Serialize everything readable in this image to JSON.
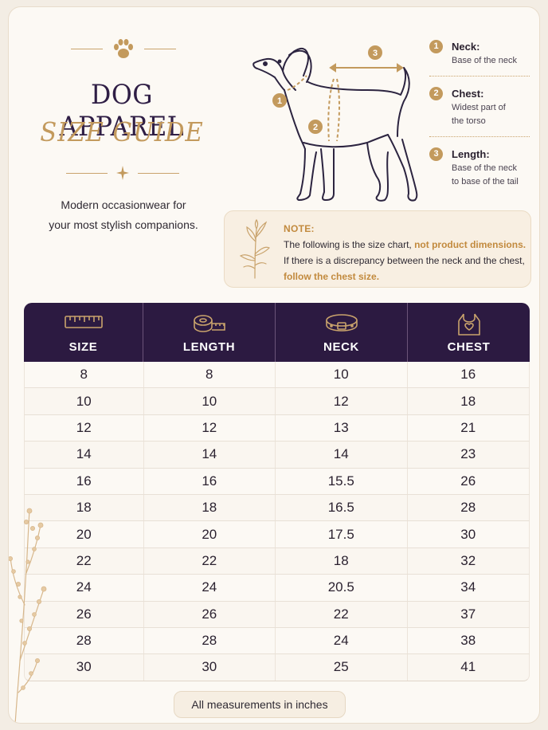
{
  "header": {
    "title_line1": "DOG APPAREL",
    "title_line2": "SIZE GUIDE",
    "tagline_line1": "Modern occasionwear for",
    "tagline_line2": "your most stylish companions."
  },
  "legend": [
    {
      "num": "1",
      "title": "Neck:",
      "desc": [
        "Base of the neck"
      ]
    },
    {
      "num": "2",
      "title": "Chest:",
      "desc": [
        "Widest part of",
        "the torso"
      ]
    },
    {
      "num": "3",
      "title": "Length:",
      "desc": [
        "Base of the neck",
        "to base of the tail"
      ]
    }
  ],
  "diagram_markers": [
    "1",
    "2",
    "3"
  ],
  "note": {
    "label": "NOTE:",
    "text_part1": "The following is the size chart, ",
    "highlight1": "not product dimensions.",
    "text_part2": " If there is a discrepancy between the neck and the chest, ",
    "highlight2": "follow the chest size."
  },
  "table": {
    "columns": [
      {
        "label": "SIZE",
        "icon": "ruler-icon"
      },
      {
        "label": "LENGTH",
        "icon": "tape-measure-icon"
      },
      {
        "label": "NECK",
        "icon": "collar-icon"
      },
      {
        "label": "CHEST",
        "icon": "tank-top-heart-icon"
      }
    ],
    "rows": [
      [
        "8",
        "8",
        "10",
        "16"
      ],
      [
        "10",
        "10",
        "12",
        "18"
      ],
      [
        "12",
        "12",
        "13",
        "21"
      ],
      [
        "14",
        "14",
        "14",
        "23"
      ],
      [
        "16",
        "16",
        "15.5",
        "26"
      ],
      [
        "18",
        "18",
        "16.5",
        "28"
      ],
      [
        "20",
        "20",
        "17.5",
        "30"
      ],
      [
        "22",
        "22",
        "18",
        "32"
      ],
      [
        "24",
        "24",
        "20.5",
        "34"
      ],
      [
        "26",
        "26",
        "22",
        "37"
      ],
      [
        "28",
        "28",
        "24",
        "38"
      ],
      [
        "30",
        "30",
        "25",
        "41"
      ]
    ]
  },
  "footer": "All measurements in inches",
  "colors": {
    "accent_gold": "#c39a5d",
    "header_purple": "#2c1a41",
    "background": "#fcf9f4"
  }
}
